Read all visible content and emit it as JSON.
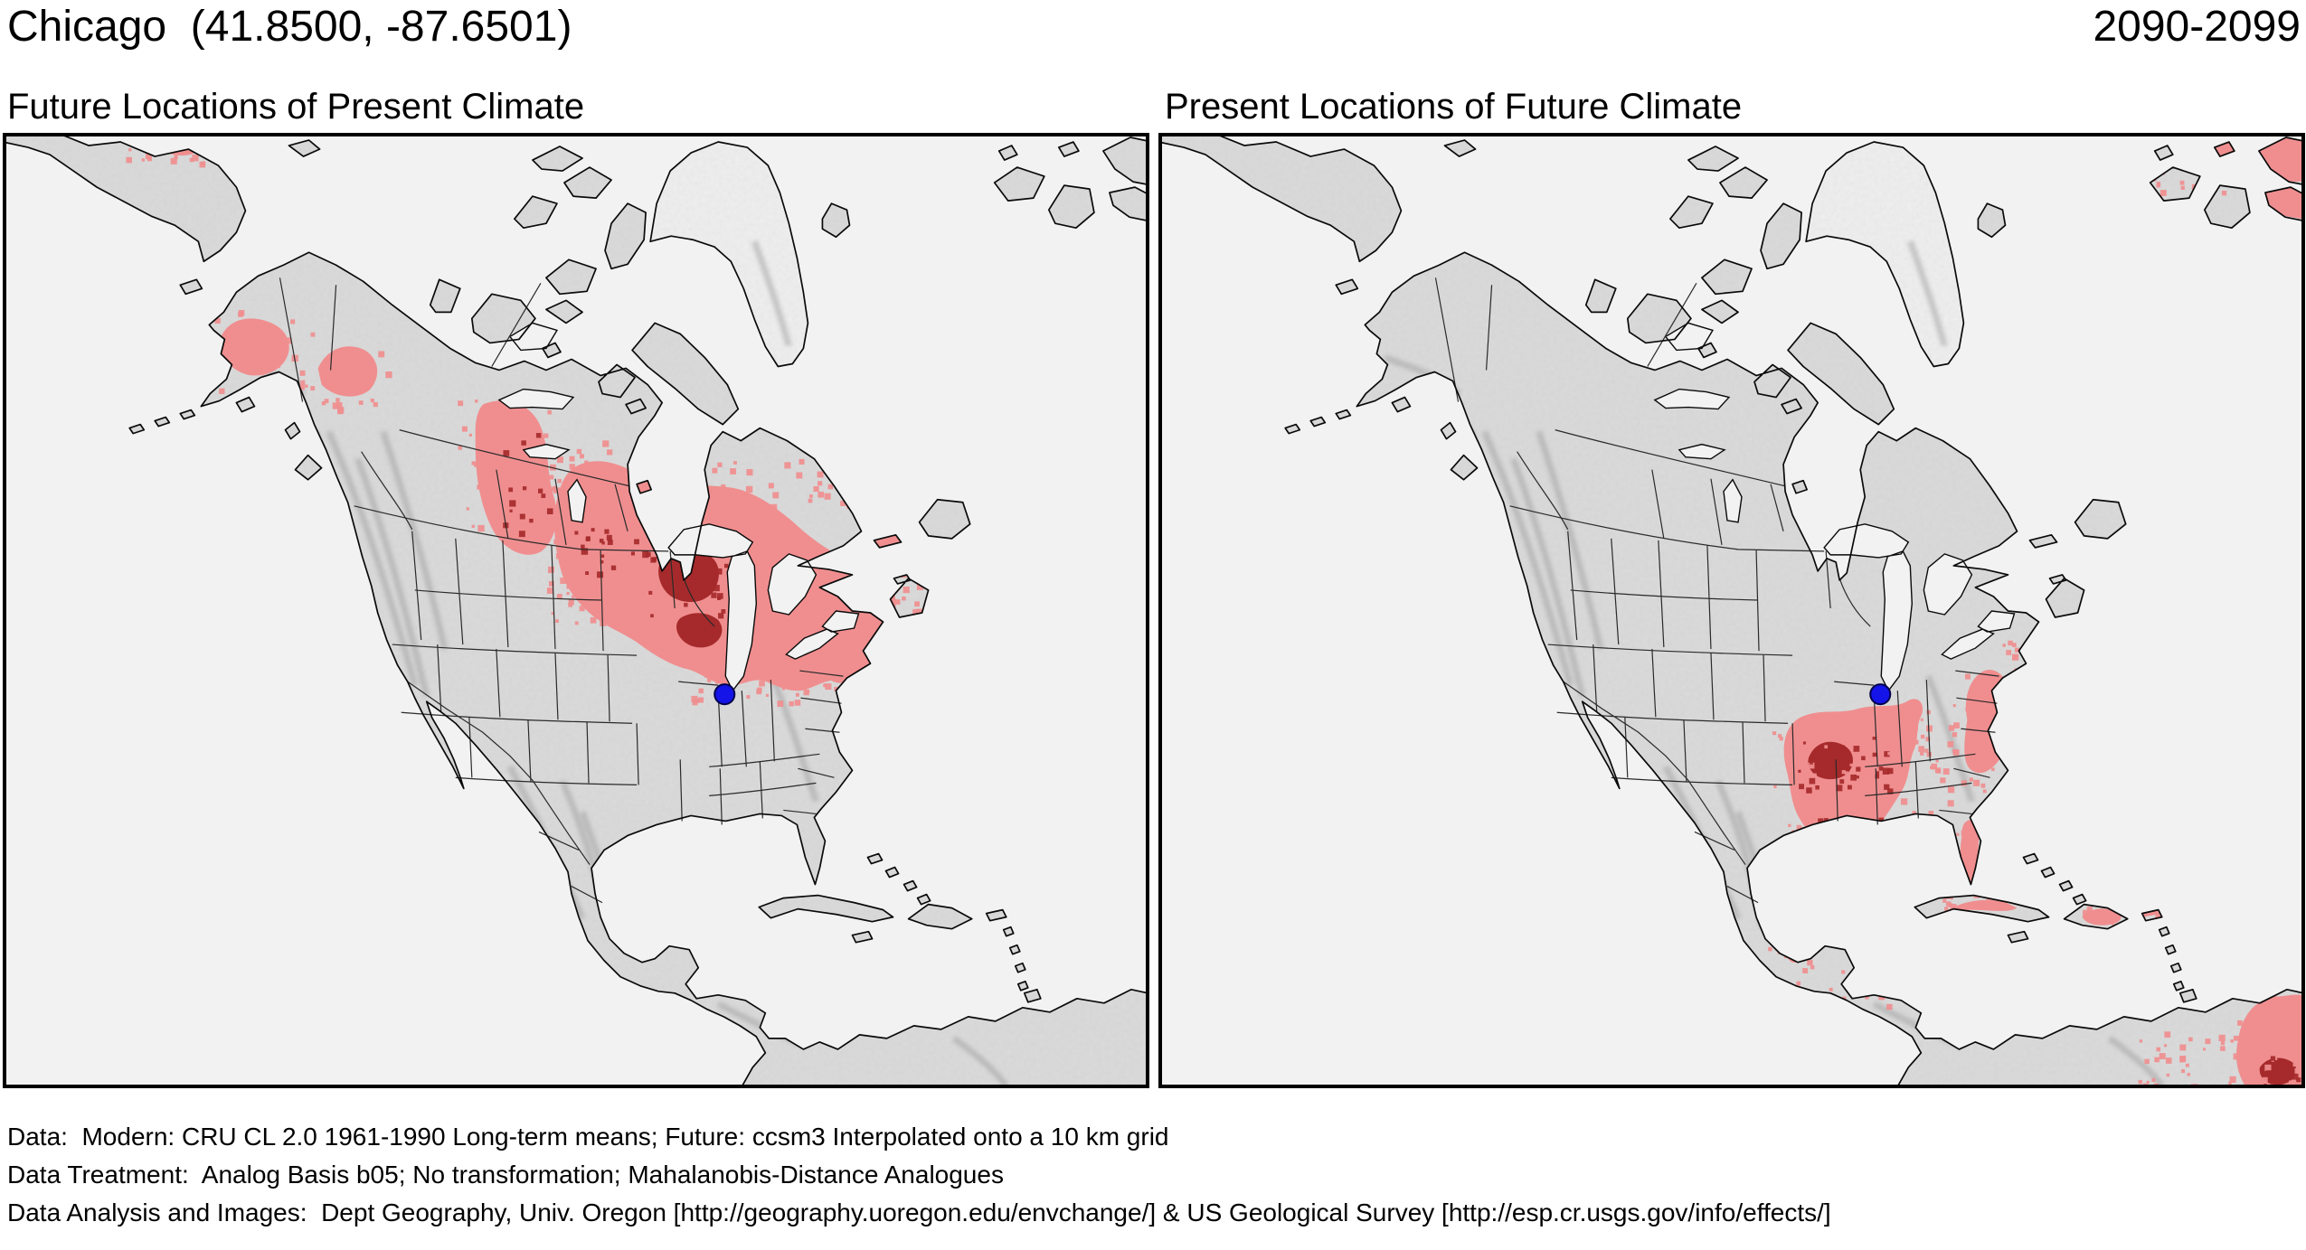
{
  "header": {
    "title": "Chicago  (41.8500, -87.6501)",
    "period": "2090-2099"
  },
  "panels": [
    {
      "id": "future-locations",
      "title": "Future Locations of Present Climate"
    },
    {
      "id": "present-locations",
      "title": "Present Locations of Future Climate"
    }
  ],
  "map": {
    "marker": {
      "city": "Chicago",
      "lat": "41.8500",
      "lon": "-87.6501",
      "color": "#1414e8",
      "outline": "#00004d"
    },
    "colors": {
      "ocean": "#f2f2f2",
      "land": "#dbdbdb",
      "ice": "#f0f0f0",
      "coastline": "#0a0a0a",
      "state_line": "#2a2a2a",
      "analog_light": "#f08e8f",
      "analog_dark": "#a62a2b",
      "frame": "#000000",
      "relief": "#9a9a9a"
    }
  },
  "footer": {
    "line1": "Data:  Modern: CRU CL 2.0 1961-1990 Long-term means; Future: ccsm3 Interpolated onto a 10 km grid",
    "line2": "Data Treatment:  Analog Basis b05; No transformation; Mahalanobis-Distance Analogues",
    "line3": "Data Analysis and Images:  Dept Geography, Univ. Oregon [http://geography.uoregon.edu/envchange/] & US Geological Survey [http://esp.cr.usgs.gov/info/effects/]"
  }
}
